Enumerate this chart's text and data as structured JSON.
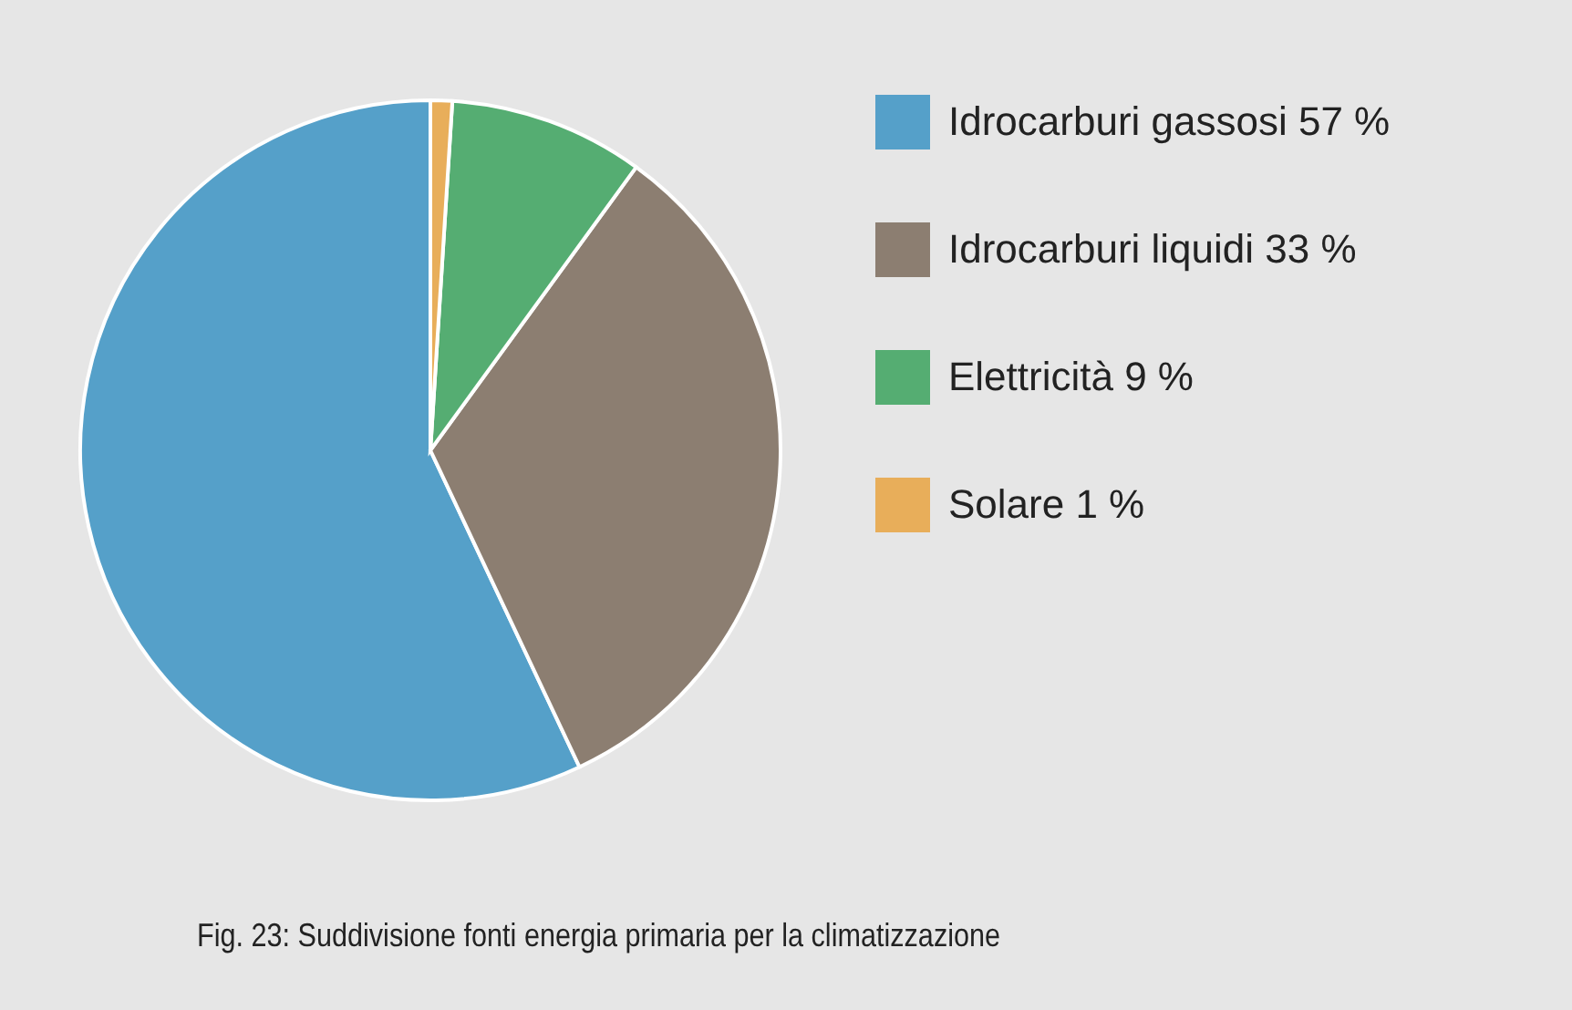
{
  "chart_data": {
    "type": "pie",
    "categories": [
      "Idrocarburi gassosi 57 %",
      "Idrocarburi liquidi 33 %",
      "Elettricità 9 %",
      "Solare 1 %"
    ],
    "values": [
      57,
      33,
      9,
      1
    ],
    "colors": [
      "#55a0c9",
      "#8c7e71",
      "#55ad72",
      "#e8ae5a"
    ],
    "legend": "right",
    "annotations": [
      "Fig. 23: Suddivisione fonti energia primaria per la climatizzazione"
    ]
  }
}
